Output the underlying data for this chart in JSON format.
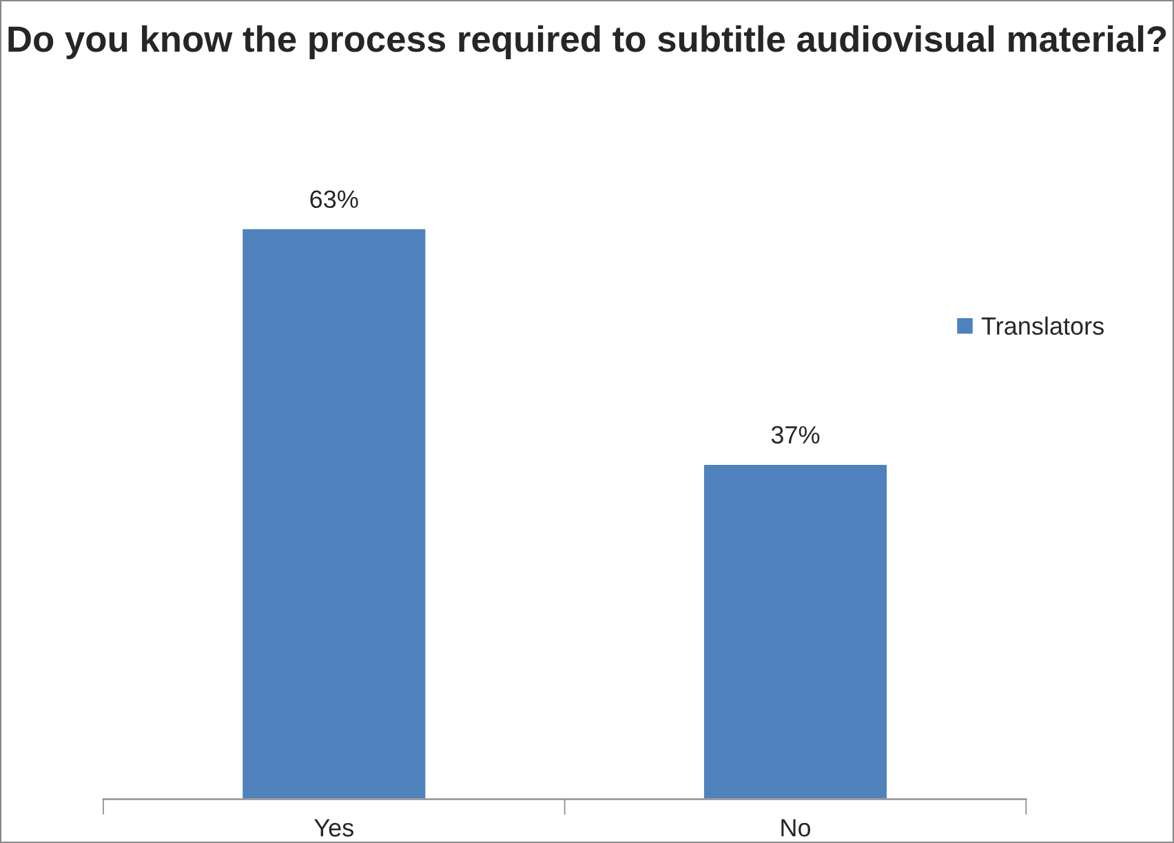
{
  "chart_data": {
    "type": "bar",
    "title": "Do you know the process required to subtitle audiovisual material?",
    "categories": [
      "Yes",
      "No"
    ],
    "series": [
      {
        "name": "Translators",
        "color": "#4f81bd",
        "values": [
          63,
          37
        ],
        "value_labels": [
          "63%",
          "37%"
        ]
      }
    ],
    "tick_labels": "x",
    "legend": "right",
    "grid": false
  }
}
